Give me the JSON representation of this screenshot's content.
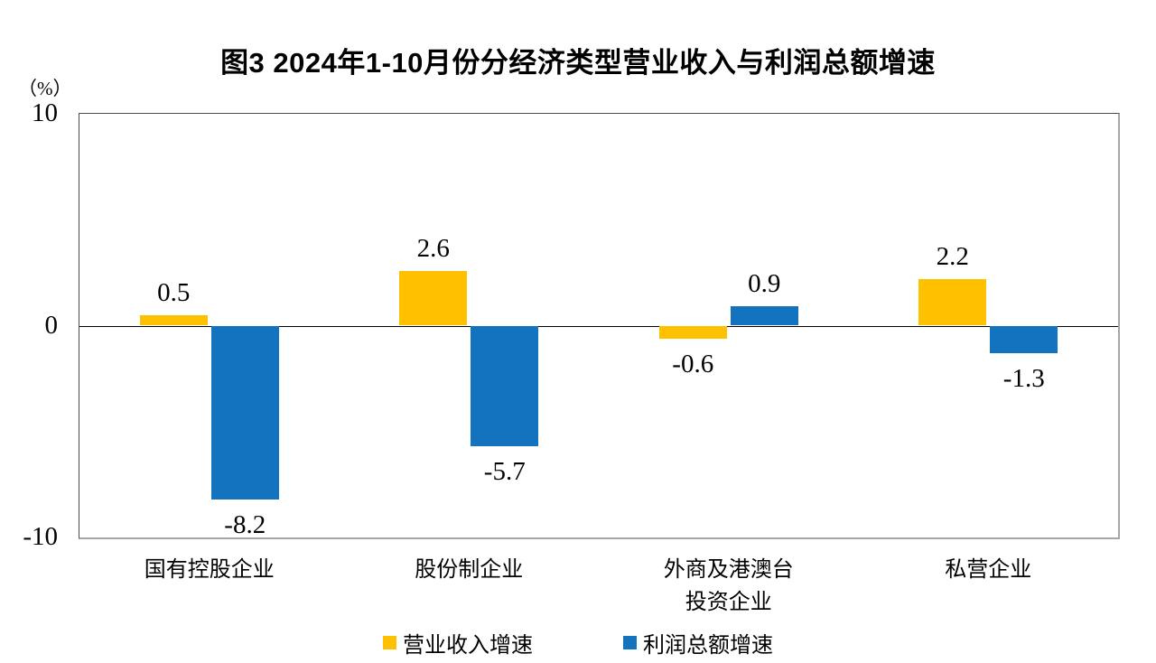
{
  "title": "图3 2024年1-10月份分经济类型营业收入与利润总额增速",
  "axis_unit": "（%）",
  "colors": {
    "revenue_series": "#FFC000",
    "profit_series": "#1473BE",
    "axis_line": "#000000",
    "plot_border": "#4a4a4a"
  },
  "chart_data": {
    "type": "bar",
    "title": "图3 2024年1-10月份分经济类型营业收入与利润总额增速",
    "ylabel": "（%）",
    "categories": [
      "国有控股企业",
      "股份制企业",
      "外商及港澳台\n投资企业",
      "私营企业"
    ],
    "series": [
      {
        "name": "营业收入增速",
        "color": "#FFC000",
        "values": [
          0.5,
          2.6,
          -0.6,
          2.2
        ]
      },
      {
        "name": "利润总额增速",
        "color": "#1473BE",
        "values": [
          -8.2,
          -5.7,
          0.9,
          -1.3
        ]
      }
    ],
    "value_labels": [
      [
        "0.5",
        "2.6",
        "-0.6",
        "2.2"
      ],
      [
        "-8.2",
        "-5.7",
        "0.9",
        "-1.3"
      ]
    ],
    "ylim": [
      -10,
      10
    ],
    "yticks": [
      10,
      0,
      -10
    ],
    "grid": false,
    "legend_position": "bottom"
  }
}
